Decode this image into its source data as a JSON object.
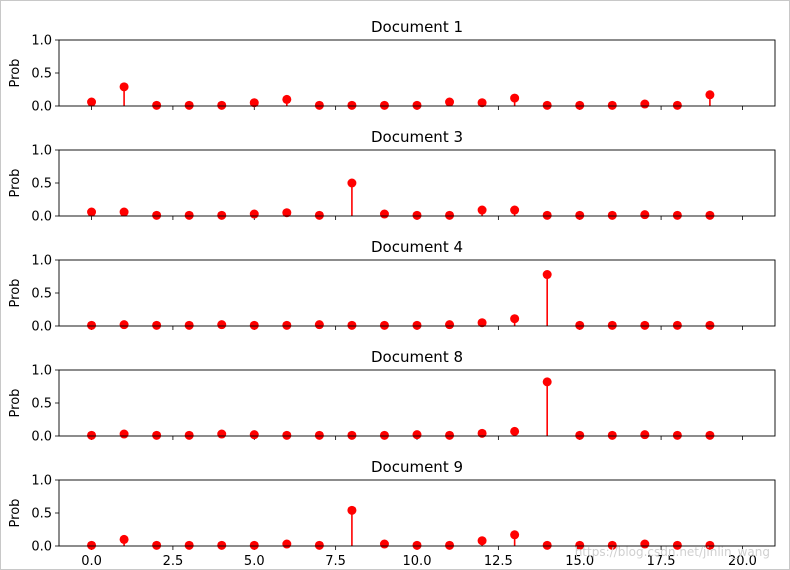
{
  "chart_data": {
    "type": "stem",
    "shared_x_ticks": [
      "0.0",
      "2.5",
      "5.0",
      "7.5",
      "10.0",
      "12.5",
      "15.0",
      "17.5",
      "20.0"
    ],
    "x_tick_values": [
      0,
      2.5,
      5,
      7.5,
      10,
      12.5,
      15,
      17.5,
      20
    ],
    "xlim": [
      -1,
      21
    ],
    "ylim": [
      0,
      1
    ],
    "y_ticks": [
      "0.0",
      "0.5",
      "1.0"
    ],
    "y_tick_values": [
      0,
      0.5,
      1
    ],
    "ylabel": "Prob",
    "marker_color": "#ff0000",
    "x": [
      0,
      1,
      2,
      3,
      4,
      5,
      6,
      7,
      8,
      9,
      10,
      11,
      12,
      13,
      14,
      15,
      16,
      17,
      18,
      19
    ],
    "panels": [
      {
        "title": "Document 1",
        "values": [
          0.06,
          0.29,
          0.01,
          0.01,
          0.01,
          0.05,
          0.1,
          0.01,
          0.01,
          0.01,
          0.01,
          0.06,
          0.05,
          0.12,
          0.01,
          0.01,
          0.01,
          0.03,
          0.01,
          0.17
        ]
      },
      {
        "title": "Document 3",
        "values": [
          0.06,
          0.06,
          0.01,
          0.01,
          0.01,
          0.03,
          0.05,
          0.01,
          0.5,
          0.03,
          0.01,
          0.01,
          0.09,
          0.09,
          0.01,
          0.01,
          0.01,
          0.02,
          0.01,
          0.01
        ]
      },
      {
        "title": "Document 4",
        "values": [
          0.01,
          0.02,
          0.01,
          0.01,
          0.02,
          0.01,
          0.01,
          0.02,
          0.01,
          0.01,
          0.01,
          0.02,
          0.05,
          0.11,
          0.78,
          0.01,
          0.01,
          0.01,
          0.01,
          0.01
        ]
      },
      {
        "title": "Document 8",
        "values": [
          0.01,
          0.03,
          0.01,
          0.01,
          0.03,
          0.02,
          0.01,
          0.01,
          0.01,
          0.01,
          0.02,
          0.01,
          0.04,
          0.07,
          0.82,
          0.01,
          0.01,
          0.02,
          0.01,
          0.01
        ]
      },
      {
        "title": "Document 9",
        "values": [
          0.01,
          0.1,
          0.01,
          0.01,
          0.01,
          0.01,
          0.03,
          0.01,
          0.54,
          0.03,
          0.01,
          0.01,
          0.08,
          0.17,
          0.01,
          0.01,
          0.01,
          0.03,
          0.01,
          0.01
        ]
      }
    ]
  },
  "watermark": "https://blog.csdn.net/jinlin_wang"
}
